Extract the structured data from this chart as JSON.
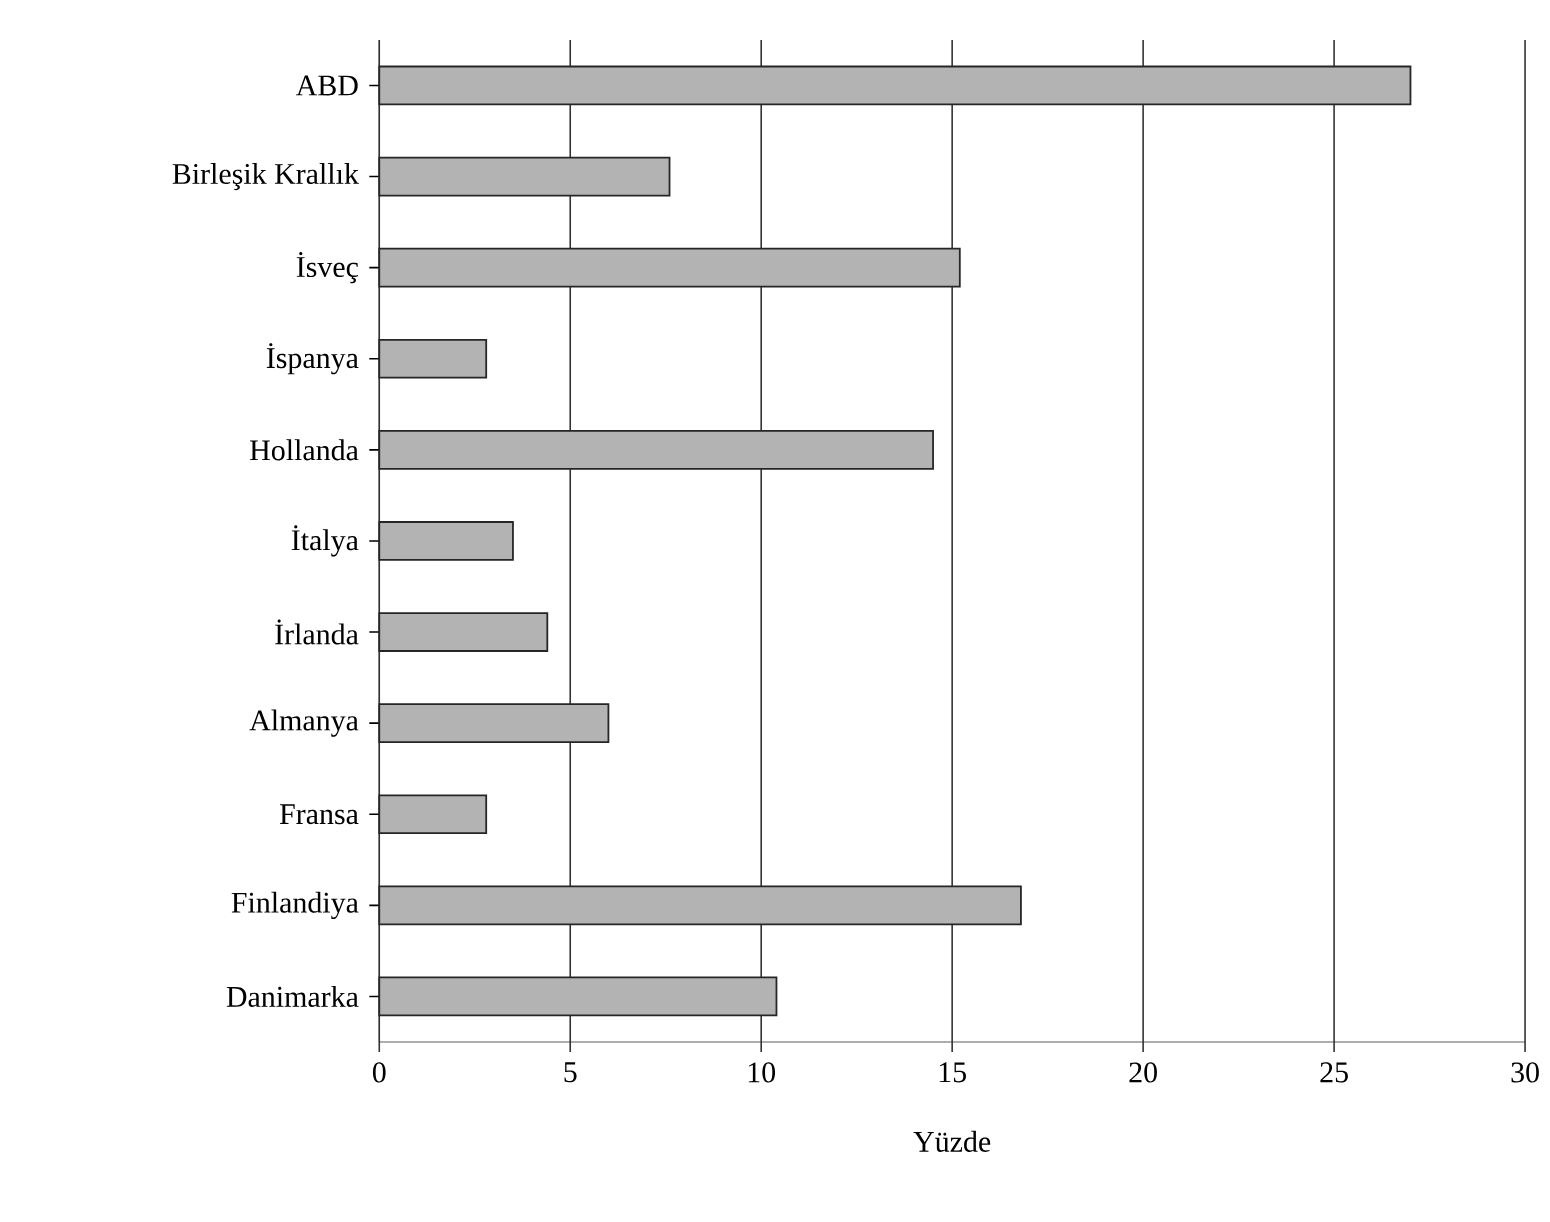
{
  "chart_data": {
    "type": "bar",
    "orientation": "horizontal",
    "xlabel": "Yüzde",
    "categories": [
      "ABD",
      "Birleşik Krallık",
      "İsveç",
      "İspanya",
      "Hollanda",
      "İtalya",
      "İrlanda",
      "Almanya",
      "Fransa",
      "Finlandiya",
      "Danimarka"
    ],
    "values": [
      27,
      7.6,
      15.2,
      2.8,
      14.5,
      3.5,
      4.4,
      6.0,
      2.8,
      16.8,
      10.4
    ],
    "color": "#b3b3b3",
    "xlim": [
      0,
      30
    ],
    "xticks": [
      0,
      5,
      10,
      15,
      20,
      25,
      30
    ],
    "grid": "x"
  }
}
